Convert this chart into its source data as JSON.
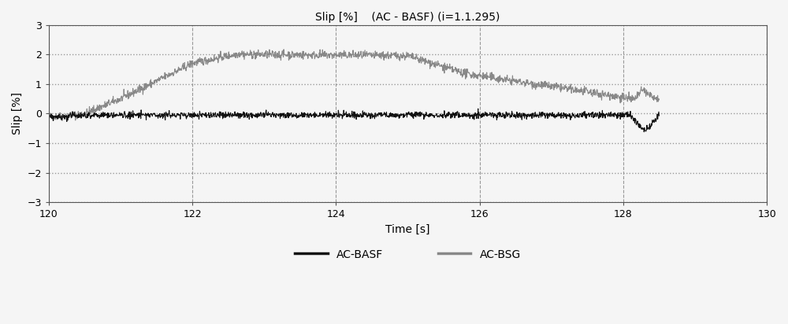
{
  "title": "Slip [%]    (AC - BASF) (i=1.1.295)",
  "xlabel": "Time [s]",
  "ylabel": "Slip [%]",
  "xlim": [
    120,
    130
  ],
  "ylim": [
    -3,
    3
  ],
  "xticks": [
    120,
    122,
    124,
    126,
    128,
    130
  ],
  "yticks": [
    -3,
    -2,
    -1,
    0,
    1,
    2,
    3
  ],
  "legend_labels": [
    "AC-BASF",
    "AC-BSG"
  ],
  "line_color_basf": "#111111",
  "line_color_bsg": "#888888",
  "bg_color": "#f5f5f5",
  "seed": 42,
  "t_start": 120.0,
  "t_end": 128.5,
  "n_points": 1700
}
